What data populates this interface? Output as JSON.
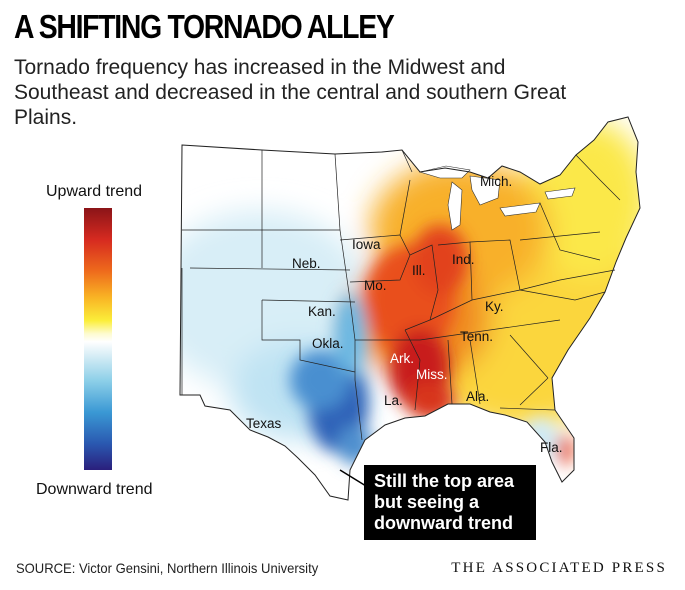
{
  "headline": "A SHIFTING TORNADO ALLEY",
  "subhead": "Tornado frequency has increased in the Midwest and Southeast and decreased in the central and southern Great Plains.",
  "legend": {
    "top_label": "Upward trend",
    "bottom_label": "Downward trend",
    "colors": [
      "#8b1418",
      "#d62a20",
      "#ee6a1c",
      "#f9b324",
      "#fbee3a",
      "#ffffff",
      "#8ccfe8",
      "#3a98d4",
      "#2a58b0",
      "#2a1f7c"
    ]
  },
  "state_labels": {
    "mich": "Mich.",
    "iowa": "Iowa",
    "neb": "Neb.",
    "ill": "Ill.",
    "ind": "Ind.",
    "mo": "Mo.",
    "kan": "Kan.",
    "ky": "Ky.",
    "tenn": "Tenn.",
    "okla": "Okla.",
    "ark": "Ark.",
    "miss": "Miss.",
    "la": "La.",
    "ala": "Ala.",
    "texas": "Texas",
    "fla": "Fla."
  },
  "callout": {
    "lines": [
      "Still the top area",
      "but seeing a",
      "downward trend"
    ]
  },
  "source": "SOURCE: Victor Gensini, Northern Illinois University",
  "credit": "THE ASSOCIATED PRESS"
}
